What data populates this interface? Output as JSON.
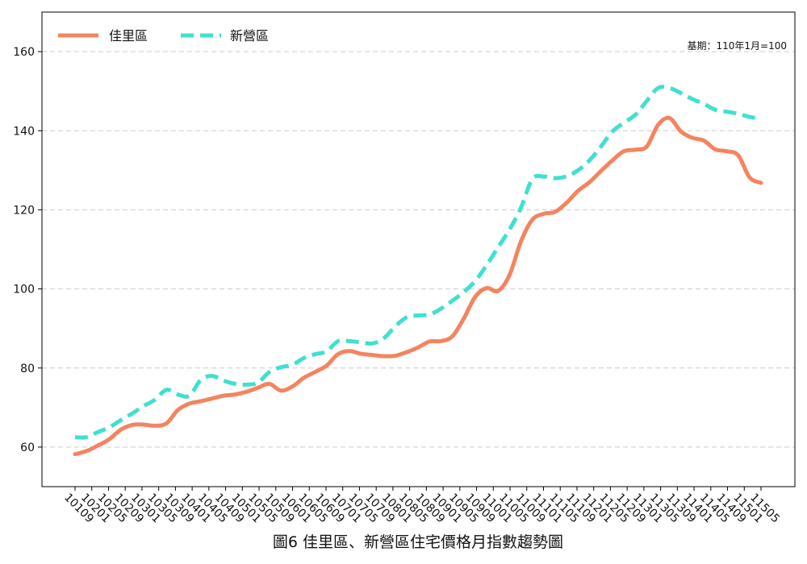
{
  "chart_data": {
    "type": "line",
    "caption": "圖6  佳里區、新營區住宅價格月指數趨勢圖",
    "note": "基期：110年1月=100",
    "ylim": [
      50,
      170
    ],
    "yticks": [
      60,
      80,
      100,
      120,
      140,
      160
    ],
    "grid": "y-dashed",
    "legend_position": "top-left",
    "x_tick_labels": [
      "10109",
      "10201",
      "10205",
      "10209",
      "10301",
      "10305",
      "10309",
      "10401",
      "10405",
      "10409",
      "10501",
      "10505",
      "10509",
      "10601",
      "10605",
      "10609",
      "10701",
      "10705",
      "10709",
      "10801",
      "10805",
      "10809",
      "10901",
      "10905",
      "10909",
      "11001",
      "11005",
      "11009",
      "11101",
      "11105",
      "11109",
      "11201",
      "11205",
      "11209",
      "11301",
      "11305",
      "11309",
      "11401",
      "11405",
      "11409",
      "11501",
      "11505"
    ],
    "series": [
      {
        "name": "佳里區",
        "color": "#F4845F",
        "style": "solid",
        "values": [
          58.2,
          59.0,
          60.4,
          62.0,
          64.4,
          65.6,
          65.7,
          65.4,
          66.0,
          69.4,
          71.0,
          71.6,
          72.3,
          73.0,
          73.3,
          74.0,
          75.0,
          76.0,
          74.3,
          75.3,
          77.5,
          79.0,
          80.6,
          83.5,
          84.3,
          83.6,
          83.3,
          83.0,
          83.1,
          84.0,
          85.2,
          86.7,
          86.8,
          88.0,
          92.5,
          98.0,
          100.2,
          99.5,
          103.5,
          112.0,
          117.5,
          119.0,
          119.5,
          121.8,
          124.8,
          127.0,
          129.8,
          132.5,
          134.8,
          135.2,
          136.0,
          141.5,
          143.2,
          139.8,
          138.2,
          137.5,
          135.3,
          134.8,
          133.8,
          128.2,
          126.8
        ]
      },
      {
        "name": "新營區",
        "color": "#40E0D0",
        "style": "dashed",
        "values": [
          62.5,
          62.5,
          63.8,
          65.0,
          66.8,
          68.5,
          70.4,
          72.0,
          74.5,
          73.3,
          73.0,
          77.0,
          78.0,
          76.8,
          76.0,
          75.8,
          76.3,
          79.0,
          80.2,
          80.8,
          82.5,
          83.5,
          84.2,
          86.8,
          86.8,
          86.5,
          86.2,
          87.5,
          90.5,
          92.8,
          93.3,
          93.5,
          95.0,
          97.0,
          99.2,
          102.0,
          106.0,
          110.5,
          115.0,
          120.5,
          127.8,
          128.4,
          128.0,
          128.5,
          130.0,
          132.5,
          136.0,
          139.8,
          142.0,
          144.0,
          147.5,
          150.8,
          150.8,
          149.5,
          148.0,
          146.8,
          145.3,
          144.8,
          144.3,
          143.5,
          143.0
        ]
      }
    ]
  }
}
